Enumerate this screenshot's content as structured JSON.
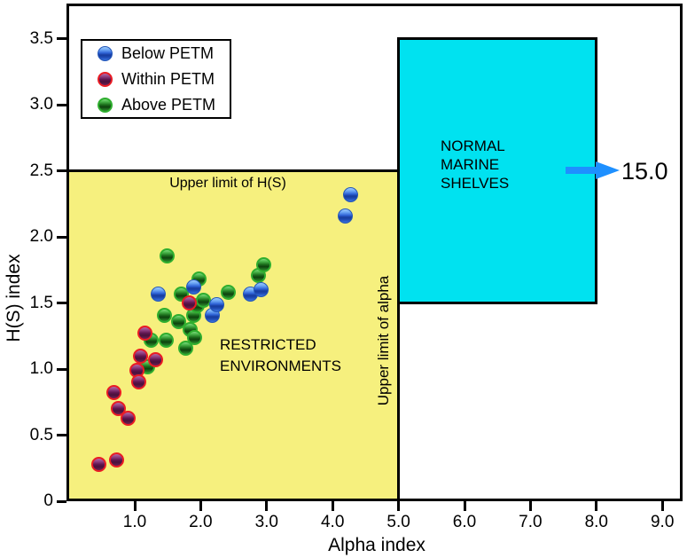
{
  "figure": {
    "legend": {
      "items": [
        {
          "label": "Below PETM",
          "color": "#3B79E8"
        },
        {
          "label": "Within PETM",
          "color": "#E8202A"
        },
        {
          "label": "Above PETM",
          "color": "#2EB42E"
        }
      ]
    },
    "annotations": {
      "upper_limit_hs": "Upper limit of H(S)",
      "upper_limit_alpha": "Upper limit of alpha",
      "restricted_line1": "RESTRICTED",
      "restricted_line2": "ENVIRONMENTS",
      "normal_line1": "NORMAL",
      "normal_line2": "MARINE",
      "normal_line3": "SHELVES",
      "arrow_label": "15.0"
    },
    "arrow": {
      "color": "#1E90FF"
    },
    "colors": {
      "restricted_fill": "#F6F07E",
      "normal_fill": "#00E2F0",
      "axis": "#000000",
      "background": "#FFFFFF"
    }
  },
  "chart_data": {
    "type": "scatter",
    "title": "",
    "xlabel": "Alpha index",
    "ylabel": "H(S) index",
    "xlim": [
      0,
      9.35
    ],
    "ylim": [
      0,
      3.77
    ],
    "grid": false,
    "legend_position": "upper left",
    "x_ticks": [
      {
        "v": 1.0,
        "label": "1.0"
      },
      {
        "v": 2.0,
        "label": "2.0"
      },
      {
        "v": 3.0,
        "label": "3.0"
      },
      {
        "v": 4.0,
        "label": "4.0"
      },
      {
        "v": 5.0,
        "label": "5.0"
      },
      {
        "v": 6.0,
        "label": "6.0"
      },
      {
        "v": 7.0,
        "label": "7.0"
      },
      {
        "v": 8.0,
        "label": "8.0"
      },
      {
        "v": 9.0,
        "label": "9.0"
      }
    ],
    "y_ticks": [
      {
        "v": 0,
        "label": "0"
      },
      {
        "v": 0.5,
        "label": "0.5"
      },
      {
        "v": 1.0,
        "label": "1.0"
      },
      {
        "v": 1.5,
        "label": "1.5"
      },
      {
        "v": 2.0,
        "label": "2.0"
      },
      {
        "v": 2.5,
        "label": "2.5"
      },
      {
        "v": 3.0,
        "label": "3.0"
      },
      {
        "v": 3.5,
        "label": "3.5"
      }
    ],
    "regions": [
      {
        "id": "region-restricted",
        "label": "RESTRICTED ENVIRONMENTS",
        "x": [
          0,
          5.0
        ],
        "y": [
          0,
          2.5
        ],
        "fill": "#F6F07E",
        "open_bottom": true
      },
      {
        "id": "region-normal",
        "label": "NORMAL MARINE SHELVES",
        "x": [
          5.0,
          8.0
        ],
        "y": [
          1.5,
          3.5
        ],
        "fill": "#00E2F0",
        "open_bottom": false
      }
    ],
    "reference_lines": [
      {
        "label": "Upper limit of H(S)",
        "axis": "y",
        "value": 2.5,
        "extent": [
          0,
          5.0
        ]
      },
      {
        "label": "Upper limit of alpha",
        "axis": "x",
        "value": 5.0,
        "extent": [
          0,
          3.5
        ]
      }
    ],
    "arrow_annotation": {
      "label": "15.0",
      "y": 2.5,
      "from_x": 7.53,
      "to_x": 8.34
    },
    "series": [
      {
        "name": "Below PETM",
        "key": "blue",
        "points": [
          [
            1.36,
            1.57
          ],
          [
            1.9,
            1.62
          ],
          [
            2.17,
            1.41
          ],
          [
            2.24,
            1.49
          ],
          [
            2.76,
            1.57
          ],
          [
            2.92,
            1.6
          ],
          [
            4.19,
            2.16
          ],
          [
            4.27,
            2.32
          ]
        ]
      },
      {
        "name": "Within PETM",
        "key": "red",
        "points": [
          [
            0.46,
            0.28
          ],
          [
            0.72,
            0.31
          ],
          [
            0.68,
            0.82
          ],
          [
            0.75,
            0.7
          ],
          [
            0.9,
            0.63
          ],
          [
            1.04,
            0.99
          ],
          [
            1.06,
            0.9
          ],
          [
            1.09,
            1.1
          ],
          [
            1.16,
            1.27
          ],
          [
            1.31,
            1.07
          ],
          [
            1.83,
            1.5
          ]
        ]
      },
      {
        "name": "Above PETM",
        "key": "green",
        "points": [
          [
            1.2,
            1.02
          ],
          [
            1.25,
            1.22
          ],
          [
            1.45,
            1.41
          ],
          [
            1.48,
            1.22
          ],
          [
            1.49,
            1.86
          ],
          [
            1.66,
            1.36
          ],
          [
            1.71,
            1.57
          ],
          [
            1.77,
            1.16
          ],
          [
            1.84,
            1.3
          ],
          [
            1.89,
            1.41
          ],
          [
            1.91,
            1.24
          ],
          [
            1.95,
            1.48
          ],
          [
            1.98,
            1.68
          ],
          [
            2.04,
            1.52
          ],
          [
            2.42,
            1.58
          ],
          [
            2.87,
            1.71
          ],
          [
            2.96,
            1.79
          ]
        ]
      }
    ]
  }
}
